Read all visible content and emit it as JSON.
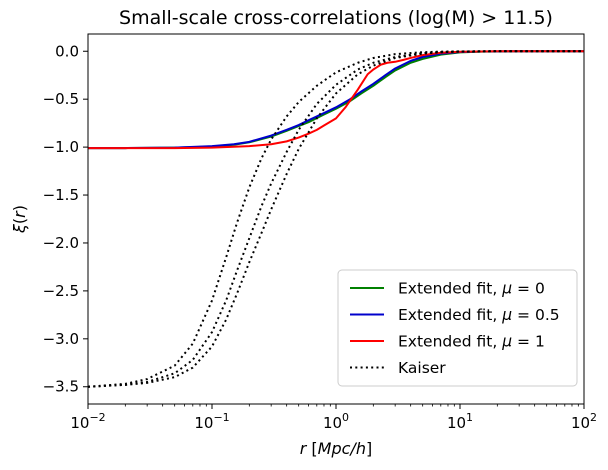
{
  "chart_data": {
    "type": "line",
    "title": "Small-scale cross-correlations (log(M) > 11.5)",
    "xlabel": "r [Mpc/h]",
    "ylabel": "ξ(r)",
    "xscale": "log",
    "xlim": [
      0.01,
      100
    ],
    "ylim": [
      -3.68,
      0.18
    ],
    "grid": false,
    "legend_position": "lower-right",
    "x_ticks": [
      {
        "value": 0.01,
        "base": "10",
        "exp": "−2"
      },
      {
        "value": 0.1,
        "base": "10",
        "exp": "−1"
      },
      {
        "value": 1,
        "base": "10",
        "exp": "0"
      },
      {
        "value": 10,
        "base": "10",
        "exp": "1"
      },
      {
        "value": 100,
        "base": "10",
        "exp": "2"
      }
    ],
    "y_ticks": [
      {
        "value": 0.0,
        "label": "0.0"
      },
      {
        "value": -0.5,
        "label": "−0.5"
      },
      {
        "value": -1.0,
        "label": "−1.0"
      },
      {
        "value": -1.5,
        "label": "−1.5"
      },
      {
        "value": -2.0,
        "label": "−2.0"
      },
      {
        "value": -2.5,
        "label": "−2.5"
      },
      {
        "value": -3.0,
        "label": "−3.0"
      },
      {
        "value": -3.5,
        "label": "−3.5"
      }
    ],
    "series": [
      {
        "name": "Extended fit, μ = 0",
        "legend_prefix": "Extended fit, ",
        "legend_math": "μ = 0",
        "color": "#008000",
        "style": "solid",
        "x": [
          0.01,
          0.02,
          0.05,
          0.1,
          0.15,
          0.2,
          0.3,
          0.4,
          0.5,
          0.6,
          0.8,
          1.0,
          1.3,
          1.6,
          2.0,
          2.5,
          3.0,
          4.0,
          5.0,
          7.0,
          10,
          15,
          20,
          30,
          50,
          100
        ],
        "y": [
          -1.01,
          -1.01,
          -1.005,
          -0.995,
          -0.975,
          -0.95,
          -0.89,
          -0.83,
          -0.78,
          -0.74,
          -0.66,
          -0.6,
          -0.52,
          -0.44,
          -0.36,
          -0.27,
          -0.2,
          -0.12,
          -0.08,
          -0.035,
          -0.012,
          -0.004,
          -0.002,
          0.0,
          0.0,
          0.0
        ]
      },
      {
        "name": "Extended fit, μ = 0.5",
        "legend_prefix": "Extended fit, ",
        "legend_math": "μ = 0.5",
        "color": "#0000cc",
        "style": "solid",
        "x": [
          0.01,
          0.02,
          0.05,
          0.1,
          0.15,
          0.2,
          0.3,
          0.4,
          0.5,
          0.6,
          0.8,
          1.0,
          1.3,
          1.6,
          2.0,
          2.5,
          3.0,
          4.0,
          5.0,
          7.0,
          10,
          15,
          20,
          30,
          50,
          100
        ],
        "y": [
          -1.01,
          -1.01,
          -1.005,
          -0.99,
          -0.97,
          -0.945,
          -0.88,
          -0.82,
          -0.77,
          -0.72,
          -0.645,
          -0.585,
          -0.5,
          -0.42,
          -0.34,
          -0.25,
          -0.18,
          -0.1,
          -0.06,
          -0.025,
          -0.008,
          -0.003,
          -0.001,
          0.0,
          0.0,
          0.0
        ]
      },
      {
        "name": "Extended fit, μ = 1",
        "legend_prefix": "Extended fit, ",
        "legend_math": "μ = 1",
        "color": "#ff0000",
        "style": "solid",
        "x": [
          0.01,
          0.02,
          0.05,
          0.1,
          0.2,
          0.3,
          0.4,
          0.5,
          0.6,
          0.7,
          0.8,
          1.0,
          1.2,
          1.5,
          1.8,
          2.0,
          2.3,
          2.6,
          3.0,
          3.5,
          4.0,
          5.0,
          7.0,
          10,
          20,
          50,
          100
        ],
        "y": [
          -1.01,
          -1.01,
          -1.01,
          -1.005,
          -0.99,
          -0.97,
          -0.94,
          -0.9,
          -0.86,
          -0.82,
          -0.775,
          -0.7,
          -0.58,
          -0.4,
          -0.24,
          -0.19,
          -0.14,
          -0.12,
          -0.11,
          -0.09,
          -0.07,
          -0.04,
          -0.015,
          -0.005,
          0.0,
          0.0,
          0.0
        ]
      },
      {
        "name": "Kaiser",
        "legend_prefix": "Kaiser",
        "legend_math": "",
        "color": "#000000",
        "style": "dotted",
        "x": [
          0.01,
          0.02,
          0.03,
          0.05,
          0.07,
          0.1,
          0.13,
          0.16,
          0.2,
          0.25,
          0.3,
          0.4,
          0.5,
          0.7,
          1.0,
          1.5,
          2.0,
          3.0,
          5.0,
          7.0,
          10,
          20,
          50,
          100
        ],
        "y": [
          -3.5,
          -3.47,
          -3.42,
          -3.28,
          -3.05,
          -2.6,
          -2.15,
          -1.78,
          -1.42,
          -1.12,
          -0.92,
          -0.68,
          -0.53,
          -0.36,
          -0.22,
          -0.12,
          -0.07,
          -0.03,
          -0.01,
          -0.004,
          -0.001,
          0.0,
          0.0,
          0.0
        ]
      },
      {
        "name": "Kaiser",
        "legend_prefix": "",
        "legend_math": "",
        "color": "#000000",
        "style": "dotted",
        "x": [
          0.01,
          0.02,
          0.03,
          0.05,
          0.07,
          0.1,
          0.13,
          0.16,
          0.2,
          0.25,
          0.3,
          0.4,
          0.5,
          0.7,
          1.0,
          1.5,
          2.0,
          3.0,
          5.0,
          7.0,
          10,
          20,
          50,
          100
        ],
        "y": [
          -3.5,
          -3.48,
          -3.45,
          -3.36,
          -3.22,
          -2.93,
          -2.6,
          -2.28,
          -1.95,
          -1.62,
          -1.38,
          -1.05,
          -0.82,
          -0.55,
          -0.35,
          -0.19,
          -0.12,
          -0.06,
          -0.02,
          -0.008,
          -0.003,
          0.0,
          0.0,
          0.0
        ]
      },
      {
        "name": "Kaiser",
        "legend_prefix": "",
        "legend_math": "",
        "color": "#000000",
        "style": "dotted",
        "x": [
          0.01,
          0.02,
          0.03,
          0.05,
          0.07,
          0.1,
          0.13,
          0.16,
          0.2,
          0.25,
          0.3,
          0.4,
          0.5,
          0.7,
          1.0,
          1.5,
          2.0,
          3.0,
          5.0,
          7.0,
          10,
          20,
          50,
          100
        ],
        "y": [
          -3.5,
          -3.48,
          -3.46,
          -3.4,
          -3.3,
          -3.08,
          -2.8,
          -2.52,
          -2.2,
          -1.9,
          -1.65,
          -1.28,
          -1.02,
          -0.7,
          -0.44,
          -0.24,
          -0.15,
          -0.07,
          -0.025,
          -0.01,
          -0.003,
          0.0,
          0.0,
          0.0
        ]
      }
    ]
  }
}
